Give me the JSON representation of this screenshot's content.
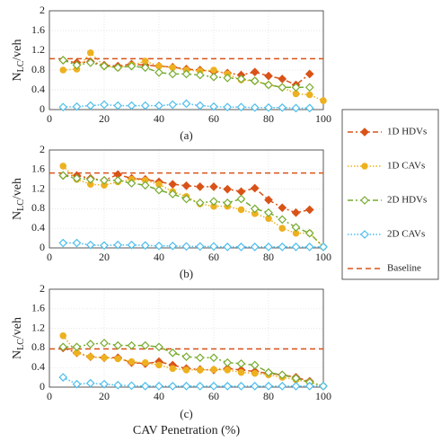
{
  "chart_data": [
    {
      "type": "line",
      "label": "(a)",
      "ylabel": "N",
      "ylabel_sub": "LC",
      "ylabel_suffix": "/veh",
      "x": [
        5,
        10,
        15,
        20,
        25,
        30,
        35,
        40,
        45,
        50,
        55,
        60,
        65,
        70,
        75,
        80,
        85,
        90,
        95,
        100
      ],
      "xlim": [
        0,
        100
      ],
      "xticks": [
        0,
        20,
        40,
        60,
        80,
        100
      ],
      "ylim": [
        0,
        2
      ],
      "yticks": [
        0,
        0.4,
        0.8,
        1.2,
        1.6,
        2
      ],
      "grid": true,
      "series": [
        {
          "name": "1D HDVs",
          "color": "#d95319",
          "style": "dashdot",
          "marker": "diamond-filled",
          "values": [
            1.0,
            0.95,
            0.97,
            0.9,
            0.88,
            0.92,
            0.9,
            0.88,
            0.86,
            0.82,
            0.8,
            0.77,
            0.74,
            0.7,
            0.76,
            0.68,
            0.62,
            0.5,
            0.72,
            null
          ]
        },
        {
          "name": "1D CAVs",
          "color": "#edb120",
          "style": "dotted",
          "marker": "circle-filled",
          "values": [
            0.8,
            0.82,
            1.15,
            0.88,
            0.85,
            0.9,
            0.98,
            0.88,
            0.85,
            0.8,
            0.78,
            0.8,
            0.72,
            0.6,
            0.58,
            0.5,
            0.45,
            0.32,
            0.3,
            0.18
          ]
        },
        {
          "name": "2D HDVs",
          "color": "#77ac30",
          "style": "dashdot",
          "marker": "diamond-open",
          "values": [
            1.0,
            0.9,
            0.95,
            0.88,
            0.85,
            0.88,
            0.85,
            0.75,
            0.72,
            0.72,
            0.7,
            0.66,
            0.64,
            0.62,
            0.58,
            0.5,
            0.45,
            0.45,
            0.45,
            null
          ]
        },
        {
          "name": "2D CAVs",
          "color": "#4dbeee",
          "style": "dotted",
          "marker": "diamond-open",
          "values": [
            0.05,
            0.06,
            0.08,
            0.1,
            0.08,
            0.08,
            0.08,
            0.08,
            0.1,
            0.12,
            0.08,
            0.06,
            0.05,
            0.05,
            0.04,
            0.04,
            0.04,
            0.03,
            0.03,
            null
          ]
        }
      ],
      "baseline": {
        "name": "Baseline",
        "color": "#d95319",
        "style": "dashed",
        "value": 1.03
      }
    },
    {
      "type": "line",
      "label": "(b)",
      "ylabel": "N",
      "ylabel_sub": "LC",
      "ylabel_suffix": "/veh",
      "x": [
        5,
        10,
        15,
        20,
        25,
        30,
        35,
        40,
        45,
        50,
        55,
        60,
        65,
        70,
        75,
        80,
        85,
        90,
        95,
        100
      ],
      "xlim": [
        0,
        100
      ],
      "xticks": [
        0,
        20,
        40,
        60,
        80,
        100
      ],
      "ylim": [
        0,
        2
      ],
      "yticks": [
        0,
        0.4,
        0.8,
        1.2,
        1.6,
        2
      ],
      "grid": true,
      "series": [
        {
          "color": "#d95319",
          "style": "dashdot",
          "marker": "diamond-filled",
          "values": [
            1.48,
            1.48,
            1.42,
            1.38,
            1.5,
            1.42,
            1.4,
            1.35,
            1.3,
            1.27,
            1.25,
            1.25,
            1.2,
            1.15,
            1.22,
            0.98,
            0.82,
            0.72,
            0.78,
            null
          ]
        },
        {
          "color": "#edb120",
          "style": "dotted",
          "marker": "circle-filled",
          "values": [
            1.67,
            1.4,
            1.3,
            1.28,
            1.35,
            1.4,
            1.38,
            1.3,
            1.15,
            1.05,
            0.9,
            0.85,
            0.85,
            0.78,
            0.7,
            0.6,
            0.4,
            0.3,
            0.3,
            0.02
          ]
        },
        {
          "color": "#77ac30",
          "style": "dashdot",
          "marker": "diamond-open",
          "values": [
            1.48,
            1.42,
            1.4,
            1.38,
            1.38,
            1.32,
            1.28,
            1.18,
            1.1,
            1.0,
            0.92,
            0.95,
            0.92,
            1.0,
            0.8,
            0.72,
            0.58,
            0.42,
            0.3,
            0.02
          ]
        },
        {
          "color": "#4dbeee",
          "style": "dotted",
          "marker": "diamond-open",
          "values": [
            0.1,
            0.1,
            0.06,
            0.05,
            0.06,
            0.06,
            0.05,
            0.04,
            0.04,
            0.03,
            0.03,
            0.03,
            0.02,
            0.02,
            0.02,
            0.02,
            0.02,
            0.02,
            0.02,
            0.02
          ]
        }
      ],
      "baseline": {
        "color": "#d95319",
        "style": "dashed",
        "value": 1.53
      }
    },
    {
      "type": "line",
      "label": "(c)",
      "ylabel": "N",
      "ylabel_sub": "LC",
      "ylabel_suffix": "/veh",
      "xlabel": "CAV Penetration (%)",
      "x": [
        5,
        10,
        15,
        20,
        25,
        30,
        35,
        40,
        45,
        50,
        55,
        60,
        65,
        70,
        75,
        80,
        85,
        90,
        95,
        100
      ],
      "xlim": [
        0,
        100
      ],
      "xticks": [
        0,
        20,
        40,
        60,
        80,
        100
      ],
      "ylim": [
        0,
        2
      ],
      "yticks": [
        0,
        0.4,
        0.8,
        1.2,
        1.6,
        2
      ],
      "grid": true,
      "series": [
        {
          "color": "#d95319",
          "style": "dashdot",
          "marker": "diamond-filled",
          "values": [
            0.8,
            0.7,
            0.62,
            0.6,
            0.6,
            0.5,
            0.48,
            0.52,
            0.45,
            0.38,
            0.36,
            0.35,
            0.38,
            0.35,
            0.32,
            0.28,
            0.25,
            0.2,
            0.12,
            null
          ]
        },
        {
          "color": "#edb120",
          "style": "dotted",
          "marker": "circle-filled",
          "values": [
            1.05,
            0.7,
            0.62,
            0.6,
            0.58,
            0.52,
            0.5,
            0.45,
            0.38,
            0.35,
            0.35,
            0.36,
            0.35,
            0.3,
            0.28,
            0.25,
            0.2,
            0.15,
            0.1,
            0.02
          ]
        },
        {
          "color": "#77ac30",
          "style": "dashdot",
          "marker": "diamond-open",
          "values": [
            0.82,
            0.82,
            0.88,
            0.9,
            0.85,
            0.85,
            0.85,
            0.82,
            0.7,
            0.62,
            0.6,
            0.6,
            0.5,
            0.48,
            0.45,
            0.3,
            0.25,
            0.18,
            0.1,
            0.02
          ]
        },
        {
          "color": "#4dbeee",
          "style": "dotted",
          "marker": "diamond-open",
          "values": [
            0.2,
            0.06,
            0.08,
            0.06,
            0.04,
            0.03,
            0.02,
            0.02,
            0.02,
            0.02,
            0.02,
            0.02,
            0.02,
            0.02,
            0.02,
            0.02,
            0.02,
            0.02,
            0.02,
            0.02
          ]
        }
      ],
      "baseline": {
        "color": "#d95319",
        "style": "dashed",
        "value": 0.78
      }
    }
  ]
}
